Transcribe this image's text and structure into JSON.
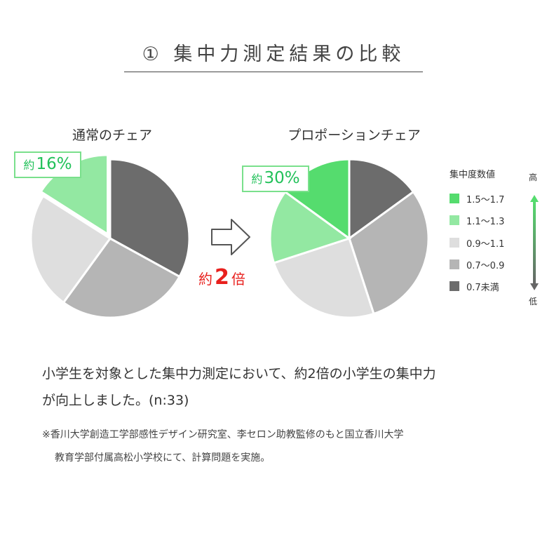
{
  "title": "① 集中力測定結果の比較",
  "chart_data": [
    {
      "type": "pie",
      "title": "通常のチェア",
      "callout": {
        "prefix": "約",
        "value": "16%"
      },
      "slices": [
        {
          "label": "0.7未満",
          "value": 33
        },
        {
          "label": "0.7〜0.9",
          "value": 27
        },
        {
          "label": "0.9〜1.1",
          "value": 24
        },
        {
          "label": "1.1〜1.3",
          "value": 16
        }
      ]
    },
    {
      "type": "pie",
      "title": "プロポーションチェア",
      "callout": {
        "prefix": "約",
        "value": "30%"
      },
      "slices": [
        {
          "label": "0.7未満",
          "value": 15
        },
        {
          "label": "0.7〜0.9",
          "value": 30
        },
        {
          "label": "0.9〜1.1",
          "value": 25
        },
        {
          "label": "1.1〜1.3",
          "value": 15
        },
        {
          "label": "1.5〜1.7",
          "value": 15
        }
      ]
    }
  ],
  "comparison": {
    "prefix": "約",
    "value": "2",
    "suffix": "倍"
  },
  "legend": {
    "title": "集中度数値",
    "high": "高",
    "low": "低",
    "items": [
      {
        "label": "1.5〜1.7",
        "color": "#55dc6e"
      },
      {
        "label": "1.1〜1.3",
        "color": "#93e8a2"
      },
      {
        "label": "0.9〜1.1",
        "color": "#dedede"
      },
      {
        "label": "0.7〜0.9",
        "color": "#b5b5b5"
      },
      {
        "label": "0.7未満",
        "color": "#6c6c6c"
      }
    ]
  },
  "body": {
    "line1": "小学生を対象とした集中力測定において、約2倍の小学生の集中力",
    "line2": "が向上しました。(n:33)"
  },
  "note": {
    "line1": "※香川大学創造工学部感性デザイン研究室、李セロン助教監修のもと国立香川大学",
    "line2": "教育学部付属高松小学校にて、計算問題を実施。"
  }
}
